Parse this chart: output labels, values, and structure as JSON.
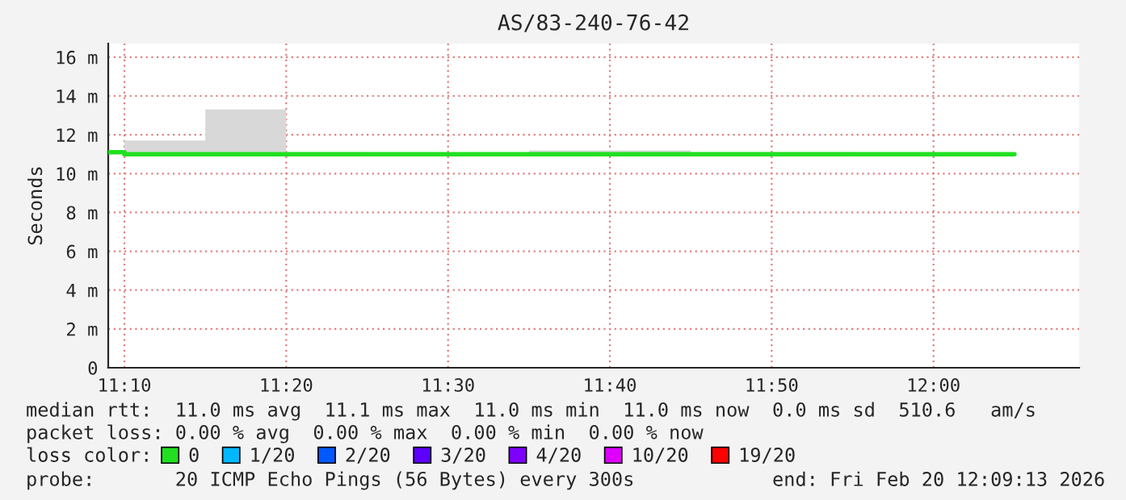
{
  "chart_data": {
    "type": "step",
    "title": "AS/83-240-76-42",
    "ylabel": "Seconds",
    "x": [
      "2026-02-20T11:09",
      "2026-02-20T11:10",
      "2026-02-20T11:15",
      "2026-02-20T11:20",
      "2026-02-20T11:25",
      "2026-02-20T11:30",
      "2026-02-20T11:35",
      "2026-02-20T11:40",
      "2026-02-20T11:45",
      "2026-02-20T11:50",
      "2026-02-20T11:55",
      "2026-02-20T12:00",
      "2026-02-20T12:05"
    ],
    "series": [
      {
        "name": "0",
        "color": "#20e020",
        "values": [
          11.1,
          11.0,
          11.0,
          11.0,
          11.0,
          11.0,
          11.0,
          11.0,
          11.0,
          11.0,
          11.0,
          11.0,
          11.0
        ],
        "lower": [
          null,
          11.0,
          11.0,
          11.0,
          11.0,
          11.0,
          11.0,
          11.0,
          11.0,
          11.0,
          11.0,
          11.0,
          11.0
        ],
        "upper": [
          null,
          11.7,
          13.3,
          11.1,
          11.0,
          11.0,
          11.2,
          11.2,
          11.1,
          11.1,
          11.0,
          11.0,
          11.0
        ]
      },
      {
        "name": "1/20",
        "color": "#00b8ff",
        "values": [
          null,
          null,
          null,
          null,
          null,
          null,
          null,
          null,
          null,
          null,
          null,
          null,
          null
        ]
      },
      {
        "name": "2/20",
        "color": "#0059ff",
        "values": [
          null,
          null,
          null,
          null,
          null,
          null,
          null,
          null,
          null,
          null,
          null,
          null,
          null
        ]
      },
      {
        "name": "3/20",
        "color": "#5e00ff",
        "values": [
          null,
          null,
          null,
          null,
          null,
          null,
          null,
          null,
          null,
          null,
          null,
          null,
          null
        ]
      },
      {
        "name": "4/20",
        "color": "#7e00ff",
        "values": [
          null,
          null,
          null,
          null,
          null,
          null,
          null,
          null,
          null,
          null,
          null,
          null,
          null
        ]
      },
      {
        "name": "10/20",
        "color": "#dd00ff",
        "values": [
          null,
          null,
          null,
          null,
          null,
          null,
          null,
          null,
          null,
          null,
          null,
          null,
          null
        ]
      },
      {
        "name": "19/20",
        "color": "#ff0000",
        "values": [
          null,
          null,
          null,
          null,
          null,
          null,
          null,
          null,
          null,
          null,
          null,
          null,
          null
        ]
      }
    ],
    "legend_title": "loss color:",
    "legend": "bottom",
    "xlim": [
      "2026-02-20T11:09",
      "2026-02-20T12:09"
    ],
    "xticks": [
      {
        "value": "2026-02-20T11:10",
        "label": "11:10"
      },
      {
        "value": "2026-02-20T11:20",
        "label": "11:20"
      },
      {
        "value": "2026-02-20T11:30",
        "label": "11:30"
      },
      {
        "value": "2026-02-20T11:40",
        "label": "11:40"
      },
      {
        "value": "2026-02-20T11:50",
        "label": "11:50"
      },
      {
        "value": "2026-02-20T12:00",
        "label": "12:00"
      }
    ],
    "ylim": [
      0,
      16.7
    ],
    "yticks": [
      0,
      {
        "value": 2,
        "label": "2 m"
      },
      {
        "value": 4,
        "label": "4 m"
      },
      {
        "value": 6,
        "label": "6 m"
      },
      {
        "value": 8,
        "label": "8 m"
      },
      {
        "value": 10,
        "label": "10 m"
      },
      {
        "value": 12,
        "label": "12 m"
      },
      {
        "value": 14,
        "label": "14 m"
      },
      {
        "value": 16,
        "label": "16 m"
      }
    ],
    "grid": true,
    "annotations": [
      "median rtt:  11.0 ms avg  11.1 ms max  11.0 ms min  11.0 ms now  0.0 ms sd  510.6   am/s",
      "packet loss: 0.00 % avg  0.00 % max  0.00 % min  0.00 % now",
      "probe:       20 ICMP Echo Pings (56 Bytes) every 300s",
      "end: Fri Feb 20 12:09:13 2026"
    ]
  }
}
